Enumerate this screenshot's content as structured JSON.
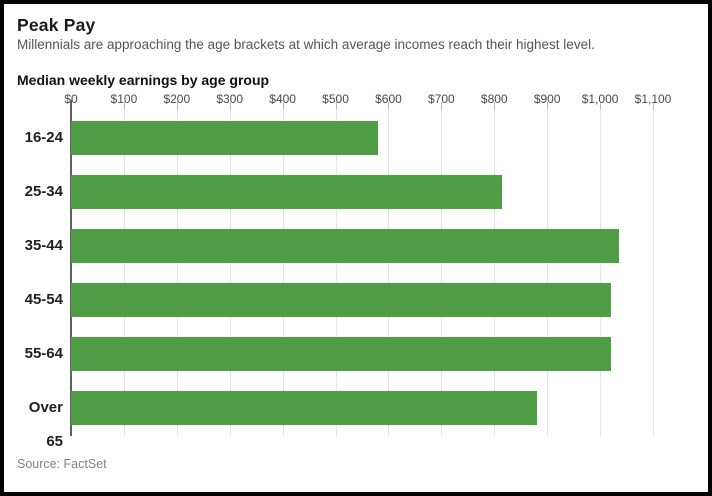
{
  "header": {
    "title": "Peak Pay",
    "subtitle": "Millennials are approaching the age brackets at which average incomes reach their highest level."
  },
  "chart_heading": "Median weekly earnings by age group",
  "source": "Source: FactSet",
  "colors": {
    "bar": "#4f9d45",
    "zero_axis": "#606060",
    "gridline": "#e5e5e5"
  },
  "chart_data": {
    "type": "bar",
    "orientation": "horizontal",
    "title": "Median weekly earnings by age group",
    "categories": [
      "16-24",
      "25-34",
      "35-44",
      "45-54",
      "55-64",
      "Over 65"
    ],
    "values": [
      580,
      815,
      1035,
      1020,
      1020,
      880
    ],
    "xlabel": "",
    "ylabel": "",
    "xlim": [
      0,
      1100
    ],
    "tick_values": [
      0,
      100,
      200,
      300,
      400,
      500,
      600,
      700,
      800,
      900,
      1000,
      1100
    ],
    "tick_labels": [
      "$0",
      "$100",
      "$200",
      "$300",
      "$400",
      "$500",
      "$600",
      "$700",
      "$800",
      "$900",
      "$1,000",
      "$1,100"
    ],
    "grid": true,
    "legend": false,
    "gridline_extent": "full-height",
    "axis_position": "top"
  }
}
